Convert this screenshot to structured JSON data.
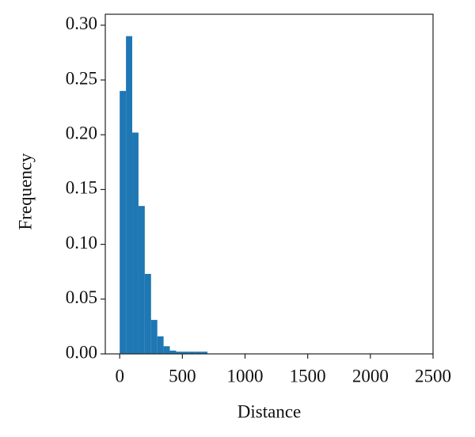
{
  "chart_data": {
    "type": "histogram",
    "x_label": "Distance",
    "y_label": "Frequency",
    "bins": [
      0,
      50,
      100,
      150,
      200,
      250,
      300,
      350,
      400,
      450,
      500,
      550,
      600,
      650,
      700
    ],
    "values": [
      0.24,
      0.29,
      0.202,
      0.135,
      0.073,
      0.031,
      0.016,
      0.007,
      0.003,
      0.002,
      0.002,
      0.002,
      0.002,
      0.002
    ],
    "color": "#1f77b4",
    "xlim": [
      -115,
      2500
    ],
    "xticks": [
      0,
      500,
      1000,
      1500,
      2000,
      2500
    ],
    "ylim": [
      0,
      0.31
    ],
    "yticks": [
      {
        "value": 0,
        "label": "0.00"
      },
      {
        "value": 0.05,
        "label": "0.05"
      },
      {
        "value": 0.1,
        "label": "0.10"
      },
      {
        "value": 0.15,
        "label": "0.15"
      },
      {
        "value": 0.2,
        "label": "0.20"
      },
      {
        "value": 0.25,
        "label": "0.25"
      },
      {
        "value": 0.3,
        "label": "0.30"
      }
    ],
    "grid": false
  }
}
